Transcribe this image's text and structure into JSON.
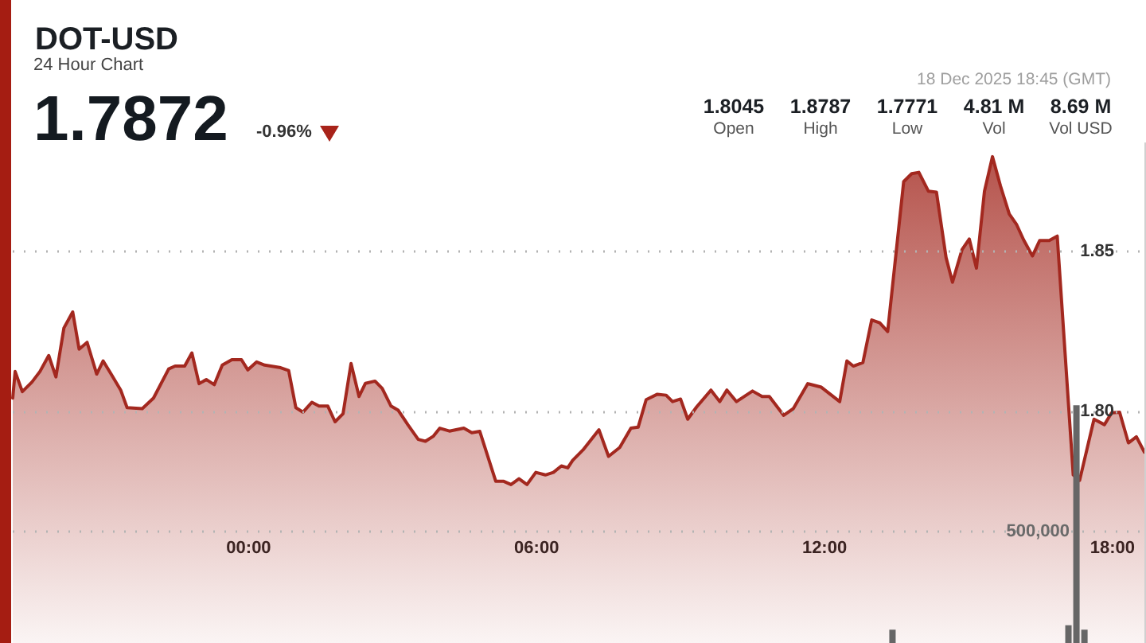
{
  "chart_data": {
    "type": "area",
    "title": "DOT-USD",
    "subtitle": "24 Hour Chart",
    "annotations": [
      "1.7872",
      "-0.96%",
      "18 Dec 2025 18:45 (GMT)",
      "1.8045",
      "Open",
      "1.8787",
      "High",
      "1.7771",
      "Low",
      "4.81 M",
      "Vol",
      "8.69 M",
      "Vol USD"
    ],
    "series": [
      {
        "color": "#a3281f",
        "x": [
          "2025-12-17T19:05",
          "2025-12-17T19:08",
          "2025-12-17T19:17",
          "2025-12-17T19:29",
          "2025-12-17T19:39",
          "2025-12-17T19:50",
          "2025-12-17T19:59",
          "2025-12-17T20:09",
          "2025-12-17T20:20",
          "2025-12-17T20:28",
          "2025-12-17T20:38",
          "2025-12-17T20:50",
          "2025-12-17T20:58",
          "2025-12-17T21:08",
          "2025-12-17T21:20",
          "2025-12-17T21:28",
          "2025-12-17T21:47",
          "2025-12-17T22:01",
          "2025-12-17T22:20",
          "2025-12-17T22:28",
          "2025-12-17T22:40",
          "2025-12-17T22:49",
          "2025-12-17T22:58",
          "2025-12-17T23:07",
          "2025-12-17T23:17",
          "2025-12-17T23:27",
          "2025-12-17T23:39",
          "2025-12-17T23:51",
          "2025-12-17T23:59",
          "2025-12-18T00:10",
          "2025-12-18T00:20",
          "2025-12-18T00:40",
          "2025-12-18T00:50",
          "2025-12-18T00:59",
          "2025-12-18T01:08",
          "2025-12-18T01:19",
          "2025-12-18T01:28",
          "2025-12-18T01:39",
          "2025-12-18T01:48",
          "2025-12-18T01:58",
          "2025-12-18T02:08",
          "2025-12-18T02:18",
          "2025-12-18T02:26",
          "2025-12-18T02:38",
          "2025-12-18T02:47",
          "2025-12-18T02:58",
          "2025-12-18T03:07",
          "2025-12-18T03:19",
          "2025-12-18T03:32",
          "2025-12-18T03:41",
          "2025-12-18T03:51",
          "2025-12-18T03:59",
          "2025-12-18T04:11",
          "2025-12-18T04:29",
          "2025-12-18T04:39",
          "2025-12-18T04:49",
          "2025-12-18T05:09",
          "2025-12-18T05:19",
          "2025-12-18T05:28",
          "2025-12-18T05:38",
          "2025-12-18T05:48",
          "2025-12-18T05:59",
          "2025-12-18T06:11",
          "2025-12-18T06:21",
          "2025-12-18T06:31",
          "2025-12-18T06:39",
          "2025-12-18T06:45",
          "2025-12-18T06:58",
          "2025-12-18T07:18",
          "2025-12-18T07:30",
          "2025-12-18T07:44",
          "2025-12-18T07:58",
          "2025-12-18T08:07",
          "2025-12-18T08:17",
          "2025-12-18T08:31",
          "2025-12-18T08:42",
          "2025-12-18T08:50",
          "2025-12-18T09:00",
          "2025-12-18T09:09",
          "2025-12-18T09:20",
          "2025-12-18T09:38",
          "2025-12-18T09:49",
          "2025-12-18T09:58",
          "2025-12-18T10:10",
          "2025-12-18T10:30",
          "2025-12-18T10:42",
          "2025-12-18T10:51",
          "2025-12-18T11:09",
          "2025-12-18T11:21",
          "2025-12-18T11:39",
          "2025-12-18T11:56",
          "2025-12-18T12:19",
          "2025-12-18T12:28",
          "2025-12-18T12:36",
          "2025-12-18T12:48",
          "2025-12-18T12:59",
          "2025-12-18T13:09",
          "2025-12-18T13:19",
          "2025-12-18T13:39",
          "2025-12-18T13:49",
          "2025-12-18T13:58",
          "2025-12-18T14:10",
          "2025-12-18T14:20",
          "2025-12-18T14:32",
          "2025-12-18T14:40",
          "2025-12-18T14:52",
          "2025-12-18T15:01",
          "2025-12-18T15:10",
          "2025-12-18T15:20",
          "2025-12-18T15:30",
          "2025-12-18T15:40",
          "2025-12-18T15:51",
          "2025-12-18T16:00",
          "2025-12-18T16:09",
          "2025-12-18T16:20",
          "2025-12-18T16:29",
          "2025-12-18T16:41",
          "2025-12-18T16:51",
          "2025-12-18T17:11",
          "2025-12-18T17:19",
          "2025-12-18T17:37",
          "2025-12-18T17:50",
          "2025-12-18T17:59",
          "2025-12-18T18:09",
          "2025-12-18T18:20",
          "2025-12-18T18:30",
          "2025-12-18T18:40"
        ],
        "values": [
          1.8041,
          1.8124,
          1.8061,
          1.8091,
          1.8124,
          1.8174,
          1.8107,
          1.826,
          1.831,
          1.8194,
          1.8215,
          1.8116,
          1.8157,
          1.8116,
          1.8066,
          1.8011,
          1.8008,
          1.8041,
          1.8132,
          1.8141,
          1.8141,
          1.8182,
          1.8086,
          1.8099,
          1.8083,
          1.8144,
          1.8161,
          1.8161,
          1.8129,
          1.8154,
          1.8144,
          1.8136,
          1.8127,
          1.8011,
          1.7997,
          1.8028,
          1.8016,
          1.8016,
          1.7967,
          1.7992,
          1.8149,
          1.8046,
          1.8087,
          1.8094,
          1.8071,
          1.8016,
          1.8003,
          1.7958,
          1.7912,
          1.7906,
          1.7922,
          1.7947,
          1.7938,
          1.7947,
          1.7933,
          1.7937,
          1.7781,
          1.7781,
          1.7771,
          1.7789,
          1.7771,
          1.7809,
          1.7801,
          1.7809,
          1.7829,
          1.7823,
          1.7846,
          1.7879,
          1.7942,
          1.7859,
          1.7887,
          1.7947,
          1.795,
          1.8036,
          1.8053,
          1.805,
          1.803,
          1.8038,
          1.7975,
          1.8013,
          1.8066,
          1.803,
          1.8066,
          1.803,
          1.8063,
          1.8046,
          1.8046,
          1.7987,
          1.8008,
          1.8086,
          1.8075,
          1.803,
          1.8157,
          1.8141,
          1.8152,
          1.8285,
          1.8276,
          1.8249,
          1.8717,
          1.8742,
          1.8746,
          1.8687,
          1.8684,
          1.848,
          1.8403,
          1.8505,
          1.8538,
          1.8447,
          1.8687,
          1.8795,
          1.8704,
          1.8616,
          1.8584,
          1.8535,
          1.8485,
          1.8533,
          1.8533,
          1.8547,
          1.7801,
          1.7784,
          1.7975,
          1.7958,
          1.7995,
          1.7997,
          1.7901,
          1.792,
          1.7872
        ]
      },
      {
        "type": "bar",
        "axis": "y2",
        "color": "#666666",
        "x": [
          "2025-12-18T13:25",
          "2025-12-18T17:05",
          "2025-12-18T17:15",
          "2025-12-18T17:25"
        ],
        "values": [
          60000,
          80000,
          1070000,
          60000
        ]
      }
    ],
    "xlim": [
      "2025-12-17T19:05",
      "2025-12-18T18:40"
    ],
    "xticks": [
      {
        "value": "2025-12-18T00:00",
        "label": "00:00"
      },
      {
        "value": "2025-12-18T06:00",
        "label": "06:00"
      },
      {
        "value": "2025-12-18T12:00",
        "label": "12:00"
      },
      {
        "value": "2025-12-18T18:00",
        "label": "18:00"
      }
    ],
    "ylim": [
      1.7276,
      1.8837
    ],
    "yticks": [
      {
        "value": 1.8,
        "label": "1.80"
      },
      1.85
    ],
    "y2lim": [
      0,
      2250000
    ],
    "y2ticks": [
      {
        "value": 500000,
        "label": "500,000"
      }
    ],
    "grid": "y",
    "marker": "none"
  }
}
